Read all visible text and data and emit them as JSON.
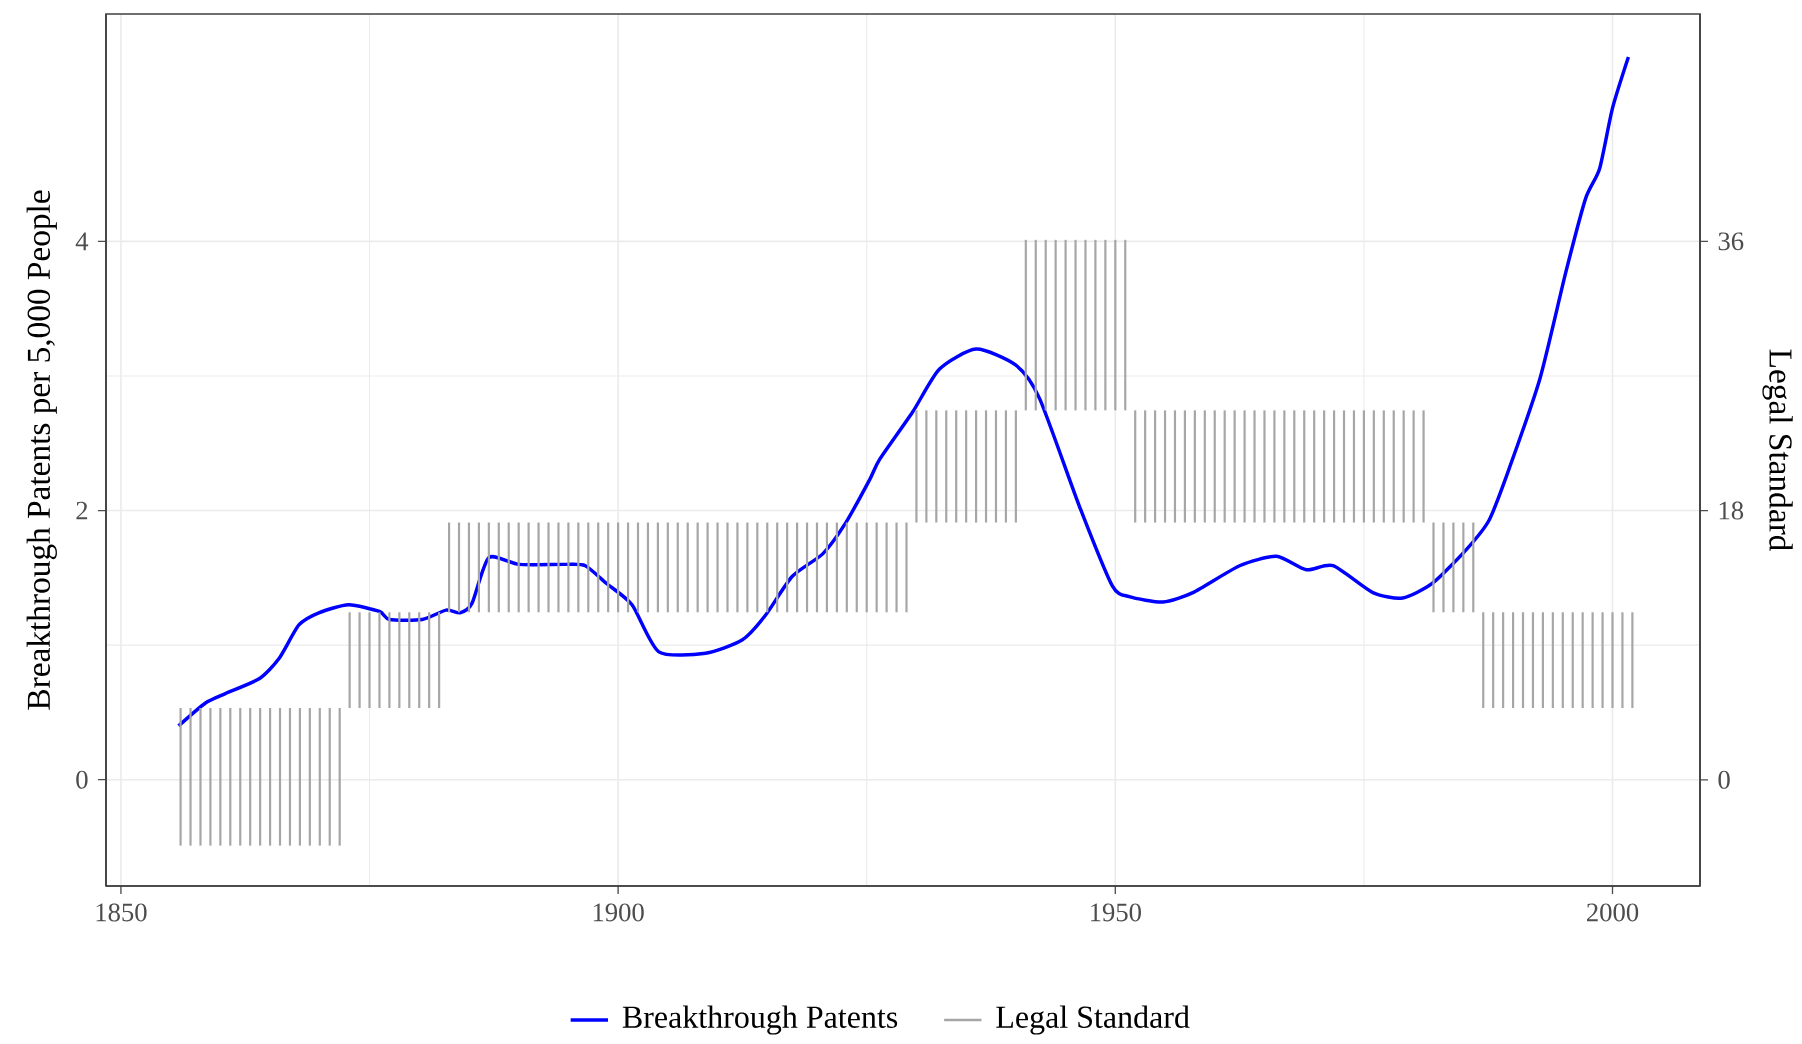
{
  "chart_data": {
    "type": "line",
    "xlabel": null,
    "ylabel": "Breakthrough Patents per 5,000 People",
    "y2label": "Legal Standard",
    "xlim": [
      1848.5,
      2008.8
    ],
    "ylim": [
      -0.79,
      5.69
    ],
    "y2lim": [
      -7.1,
      51.2
    ],
    "xticks": [
      1850,
      1900,
      1950,
      2000
    ],
    "yticks": [
      0,
      2,
      4
    ],
    "y2ticks": [
      0,
      18,
      36
    ],
    "grid": true,
    "legend": "bottom",
    "series": [
      {
        "name": "Breakthrough Patents",
        "color": "#0000ff",
        "x": [
          1855.8,
          1858.5,
          1860.5,
          1863.9,
          1865.9,
          1867.9,
          1869.9,
          1872.9,
          1876,
          1877,
          1880.3,
          1882.7,
          1884.1,
          1885.3,
          1887,
          1890,
          1894.7,
          1896.7,
          1898.8,
          1901.4,
          1904.1,
          1908.8,
          1912.5,
          1914.8,
          1917.5,
          1920.6,
          1922.9,
          1925.3,
          1926.3,
          1929.6,
          1932.3,
          1936,
          1940,
          1942.4,
          1946.4,
          1949.7,
          1951.4,
          1954.8,
          1957.8,
          1962.5,
          1966.2,
          1969.2,
          1971.9,
          1975.9,
          1978.9,
          1981.9,
          1985.3,
          1987.6,
          1989.6,
          1992.7,
          1995.3,
          1997.3,
          1998.7,
          2000,
          2001.6
        ],
        "values": [
          0.4,
          0.57,
          0.64,
          0.75,
          0.9,
          1.15,
          1.24,
          1.3,
          1.25,
          1.19,
          1.19,
          1.26,
          1.24,
          1.31,
          1.65,
          1.6,
          1.6,
          1.59,
          1.46,
          1.3,
          0.95,
          0.94,
          1.04,
          1.22,
          1.51,
          1.68,
          1.91,
          2.23,
          2.38,
          2.73,
          3.05,
          3.2,
          3.08,
          2.83,
          2.03,
          1.44,
          1.36,
          1.32,
          1.39,
          1.59,
          1.66,
          1.56,
          1.59,
          1.39,
          1.35,
          1.46,
          1.71,
          1.93,
          2.31,
          2.98,
          3.77,
          4.32,
          4.54,
          4.99,
          5.37
        ]
      },
      {
        "name": "Legal Standard",
        "color": "#a6a6a6",
        "type": "bar",
        "axis": "y2",
        "x": [
          1856,
          1857,
          1858,
          1859,
          1860,
          1861,
          1862,
          1863,
          1864,
          1865,
          1866,
          1867,
          1868,
          1869,
          1870,
          1871,
          1872,
          1873,
          1874,
          1875,
          1876,
          1877,
          1878,
          1879,
          1880,
          1881,
          1882,
          1883,
          1884,
          1885,
          1886,
          1887,
          1888,
          1889,
          1890,
          1891,
          1892,
          1893,
          1894,
          1895,
          1896,
          1897,
          1898,
          1899,
          1900,
          1901,
          1902,
          1903,
          1904,
          1905,
          1906,
          1907,
          1908,
          1909,
          1910,
          1911,
          1912,
          1913,
          1914,
          1915,
          1916,
          1917,
          1918,
          1919,
          1920,
          1921,
          1922,
          1923,
          1924,
          1925,
          1926,
          1927,
          1928,
          1929,
          1930,
          1931,
          1932,
          1933,
          1934,
          1935,
          1936,
          1937,
          1938,
          1939,
          1940,
          1941,
          1942,
          1943,
          1944,
          1945,
          1946,
          1947,
          1948,
          1949,
          1950,
          1951,
          1952,
          1953,
          1954,
          1955,
          1956,
          1957,
          1958,
          1959,
          1960,
          1961,
          1962,
          1963,
          1964,
          1965,
          1966,
          1967,
          1968,
          1969,
          1970,
          1971,
          1972,
          1973,
          1974,
          1975,
          1976,
          1977,
          1978,
          1979,
          1980,
          1981,
          1982,
          1983,
          1984,
          1985,
          1986,
          1987,
          1988,
          1989,
          1990,
          1991,
          1992,
          1993,
          1994,
          1995,
          1996,
          1997,
          1998,
          1999,
          2000,
          2001,
          2002
        ],
        "base": [
          -4.4,
          -4.4,
          -4.4,
          -4.4,
          -4.4,
          -4.4,
          -4.4,
          -4.4,
          -4.4,
          -4.4,
          -4.4,
          -4.4,
          -4.4,
          -4.4,
          -4.4,
          -4.4,
          -4.4,
          4.8,
          4.8,
          4.8,
          4.8,
          4.8,
          4.8,
          4.8,
          4.8,
          4.8,
          4.8,
          11.2,
          11.2,
          11.2,
          11.2,
          11.2,
          11.2,
          11.2,
          11.2,
          11.2,
          11.2,
          11.2,
          11.2,
          11.2,
          11.2,
          11.2,
          11.2,
          11.2,
          11.2,
          11.2,
          11.2,
          11.2,
          11.2,
          11.2,
          11.2,
          11.2,
          11.2,
          11.2,
          11.2,
          11.2,
          11.2,
          11.2,
          11.2,
          11.2,
          11.2,
          11.2,
          11.2,
          11.2,
          11.2,
          11.2,
          11.2,
          11.2,
          11.2,
          11.2,
          11.2,
          11.2,
          11.2,
          11.2,
          17.2,
          17.2,
          17.2,
          17.2,
          17.2,
          17.2,
          17.2,
          17.2,
          17.2,
          17.2,
          17.2,
          24.7,
          24.7,
          24.7,
          24.7,
          24.7,
          24.7,
          24.7,
          24.7,
          24.7,
          24.7,
          24.7,
          17.2,
          17.2,
          17.2,
          17.2,
          17.2,
          17.2,
          17.2,
          17.2,
          17.2,
          17.2,
          17.2,
          17.2,
          17.2,
          17.2,
          17.2,
          17.2,
          17.2,
          17.2,
          17.2,
          17.2,
          17.2,
          17.2,
          17.2,
          17.2,
          17.2,
          17.2,
          17.2,
          17.2,
          17.2,
          17.2,
          11.2,
          11.2,
          11.2,
          11.2,
          11.2,
          4.8,
          4.8,
          4.8,
          4.8,
          4.8,
          4.8,
          4.8,
          4.8,
          4.8,
          4.8,
          4.8,
          4.8,
          4.8,
          4.8,
          4.8,
          4.8
        ],
        "values": [
          9.2,
          9.2,
          9.2,
          9.2,
          9.2,
          9.2,
          9.2,
          9.2,
          9.2,
          9.2,
          9.2,
          9.2,
          9.2,
          9.2,
          9.2,
          9.2,
          9.2,
          6.4,
          6.4,
          6.4,
          6.4,
          6.4,
          6.4,
          6.4,
          6.4,
          6.4,
          6.4,
          6,
          6,
          6,
          6,
          6,
          6,
          6,
          6,
          6,
          6,
          6,
          6,
          6,
          6,
          6,
          6,
          6,
          6,
          6,
          6,
          6,
          6,
          6,
          6,
          6,
          6,
          6,
          6,
          6,
          6,
          6,
          6,
          6,
          6,
          6,
          6,
          6,
          6,
          6,
          6,
          6,
          6,
          6,
          6,
          6,
          6,
          6,
          7.5,
          7.5,
          7.5,
          7.5,
          7.5,
          7.5,
          7.5,
          7.5,
          7.5,
          7.5,
          7.5,
          11.4,
          11.4,
          11.4,
          11.4,
          11.4,
          11.4,
          11.4,
          11.4,
          11.4,
          11.4,
          11.4,
          7.5,
          7.5,
          7.5,
          7.5,
          7.5,
          7.5,
          7.5,
          7.5,
          7.5,
          7.5,
          7.5,
          7.5,
          7.5,
          7.5,
          7.5,
          7.5,
          7.5,
          7.5,
          7.5,
          7.5,
          7.5,
          7.5,
          7.5,
          7.5,
          7.5,
          7.5,
          7.5,
          7.5,
          7.5,
          7.5,
          6,
          6,
          6,
          6,
          6,
          6.4,
          6.4,
          6.4,
          6.4,
          6.4,
          6.4,
          6.4,
          6.4,
          6.4,
          6.4,
          6.4,
          6.4,
          6.4,
          6.4,
          6.4,
          6.4
        ]
      }
    ]
  }
}
